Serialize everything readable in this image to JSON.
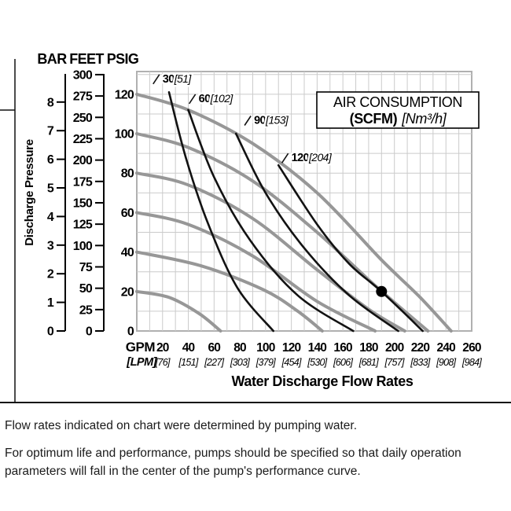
{
  "figure": {
    "axis_headers": {
      "bar": "BAR",
      "feet": "FEET",
      "psig": "PSIG"
    },
    "y_axis_title": "Discharge Pressure",
    "x_row_labels": {
      "gpm": "GPM",
      "lpm": "[LPM]"
    },
    "x_axis_title": "Water Discharge Flow Rates"
  },
  "chart_data": {
    "type": "line",
    "title": "Water Discharge Flow Rates",
    "xlabel": "GPM [LPM]",
    "ylabel": "Discharge Pressure (PSIG / FEET / BAR)",
    "xlim": [
      0,
      260
    ],
    "ylim": [
      0,
      131.5
    ],
    "grid": {
      "x_step_gpm": 10,
      "y_step_psig": 10
    },
    "x_axis": {
      "ticks_gpm": [
        20,
        40,
        60,
        80,
        100,
        120,
        140,
        160,
        180,
        200,
        220,
        240,
        260
      ],
      "ticks_lpm": [
        "[76]",
        "[151]",
        "[227]",
        "[303]",
        "[379]",
        "[454]",
        "[530]",
        "[606]",
        "[681]",
        "[757]",
        "[833]",
        "[908]",
        "[984]"
      ]
    },
    "y_axis": {
      "ticks_psig": [
        120,
        100,
        80,
        60,
        40,
        20,
        0
      ],
      "ticks_feet": [
        300,
        275,
        250,
        225,
        200,
        175,
        150,
        125,
        100,
        75,
        50,
        25,
        0
      ],
      "ticks_bar": [
        8,
        7,
        6,
        5,
        4,
        3,
        2,
        1,
        0
      ]
    },
    "legend": {
      "line1": "AIR CONSUMPTION",
      "line2_bold": "(SCFM)",
      "line2_italic": "[Nm³/h]"
    },
    "series": [
      {
        "name": "pressure-curve-120-psig",
        "kind": "performance",
        "points": [
          [
            0,
            120
          ],
          [
            40,
            112
          ],
          [
            90,
            95
          ],
          [
            140,
            70
          ],
          [
            190,
            36
          ],
          [
            220,
            17
          ],
          [
            244,
            0
          ]
        ]
      },
      {
        "name": "pressure-curve-100-psig",
        "kind": "performance",
        "points": [
          [
            0,
            100
          ],
          [
            40,
            93
          ],
          [
            90,
            76
          ],
          [
            140,
            50
          ],
          [
            185,
            23
          ],
          [
            226,
            0
          ]
        ]
      },
      {
        "name": "pressure-curve-80-psig",
        "kind": "performance",
        "points": [
          [
            0,
            80
          ],
          [
            40,
            74
          ],
          [
            90,
            57
          ],
          [
            140,
            31
          ],
          [
            180,
            11
          ],
          [
            208,
            0
          ]
        ]
      },
      {
        "name": "pressure-curve-60-psig",
        "kind": "performance",
        "points": [
          [
            0,
            60
          ],
          [
            40,
            54
          ],
          [
            90,
            38
          ],
          [
            140,
            15
          ],
          [
            185,
            0
          ]
        ]
      },
      {
        "name": "pressure-curve-40-psig",
        "kind": "performance",
        "points": [
          [
            0,
            40
          ],
          [
            50,
            33
          ],
          [
            98,
            21
          ],
          [
            125,
            10
          ],
          [
            144,
            0
          ]
        ]
      },
      {
        "name": "pressure-curve-20-psig",
        "kind": "performance",
        "points": [
          [
            0,
            20
          ],
          [
            25,
            17
          ],
          [
            48,
            9
          ],
          [
            65,
            0
          ]
        ]
      },
      {
        "name": "air-curve-30-scfm",
        "kind": "air",
        "label": "30",
        "label_alt": "[51]",
        "label_pos": [
          20,
          126
        ],
        "points": [
          [
            25,
            121
          ],
          [
            38,
            88
          ],
          [
            55,
            55
          ],
          [
            78,
            22
          ],
          [
            106,
            0
          ]
        ]
      },
      {
        "name": "air-curve-60-scfm",
        "kind": "air",
        "label": "60",
        "label_alt": "[102]",
        "label_pos": [
          48,
          116
        ],
        "points": [
          [
            40,
            112
          ],
          [
            60,
            78
          ],
          [
            88,
            46
          ],
          [
            125,
            18
          ],
          [
            168,
            0
          ]
        ]
      },
      {
        "name": "air-curve-90-scfm",
        "kind": "air",
        "label": "90",
        "label_alt": "[153]",
        "label_pos": [
          91,
          105
        ],
        "points": [
          [
            77,
            100
          ],
          [
            100,
            70
          ],
          [
            130,
            42
          ],
          [
            165,
            18
          ],
          [
            203,
            0
          ]
        ]
      },
      {
        "name": "air-curve-120-scfm",
        "kind": "air",
        "label": "120",
        "label_alt": "[204]",
        "label_pos": [
          120,
          86
        ],
        "points": [
          [
            110,
            84
          ],
          [
            140,
            54
          ],
          [
            165,
            34
          ],
          [
            190,
            20
          ],
          [
            222,
            0
          ]
        ]
      }
    ],
    "marker": {
      "gpm": 190,
      "psig": 20
    }
  },
  "notes": {
    "note1": "Flow rates indicated on chart were determined by pumping water.",
    "note2": "For optimum life and performance, pumps should be specified so that daily operation parameters will fall in the center of the pump's performance curve."
  },
  "colors": {
    "performance_curve": "#979797",
    "air_curve": "#121212",
    "grid": "#cbcbcb",
    "plot_border": "#b0b0b0",
    "frame": "#111111"
  }
}
